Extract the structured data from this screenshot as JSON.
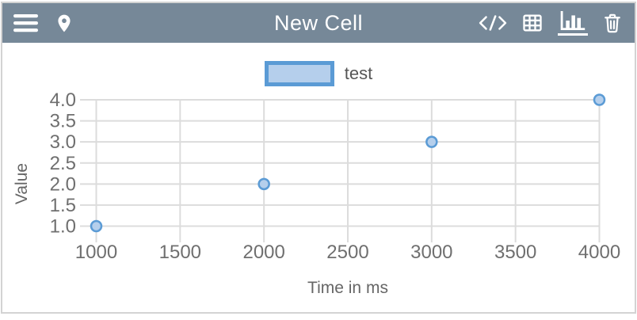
{
  "window": {
    "border_color": "#d3d3d3",
    "background": "#ffffff"
  },
  "header": {
    "title": "New Cell",
    "bg_color": "#768898",
    "icon_color": "#ffffff",
    "icons": [
      {
        "name": "menu-icon"
      },
      {
        "name": "location-pin-icon"
      },
      {
        "name": "code-icon"
      },
      {
        "name": "table-icon"
      },
      {
        "name": "bar-chart-icon",
        "active": true
      },
      {
        "name": "trash-icon"
      }
    ]
  },
  "legend": {
    "label": "test",
    "swatch_fill": "#b5cfec",
    "swatch_border": "#5b9bd5"
  },
  "chart_data": {
    "type": "scatter",
    "title": "",
    "xlabel": "Time in ms",
    "ylabel": "Value",
    "xlim": [
      1000,
      4000
    ],
    "ylim": [
      1.0,
      4.0
    ],
    "xticks": [
      1000,
      1500,
      2000,
      2500,
      3000,
      3500,
      4000
    ],
    "xtick_labels": [
      "1000",
      "1500",
      "2000",
      "2500",
      "3000",
      "3500",
      "4000"
    ],
    "yticks": [
      1.0,
      1.5,
      2.0,
      2.5,
      3.0,
      3.5,
      4.0
    ],
    "ytick_labels": [
      "1.0",
      "1.5",
      "2.0",
      "2.5",
      "3.0",
      "3.5",
      "4.0"
    ],
    "grid": true,
    "grid_color": "#dcdcdc",
    "tick_label_color": "#6f6f6f",
    "axis_label_color": "#666666",
    "legend_position": "top-center",
    "series": [
      {
        "name": "test",
        "type": "scatter",
        "x": [
          1000,
          2000,
          3000,
          4000
        ],
        "y": [
          1.0,
          2.0,
          3.0,
          4.0
        ],
        "point_stroke": "#5b9bd5",
        "point_fill": "#b5cfec"
      }
    ]
  }
}
